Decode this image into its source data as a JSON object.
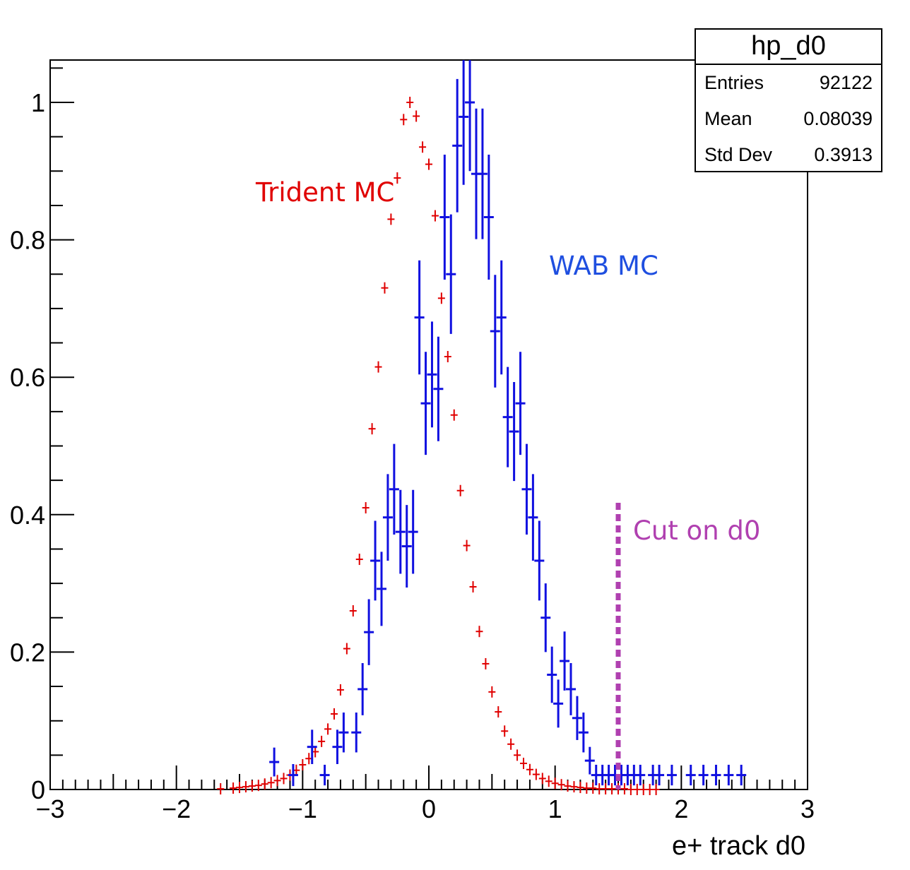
{
  "stats_box": {
    "title": "hp_d0",
    "entries_label": "Entries",
    "entries_value": "92122",
    "mean_label": "Mean",
    "mean_value": "0.08039",
    "std_label": "Std Dev",
    "std_value": "0.3913"
  },
  "annotations": {
    "trident": "Trident MC",
    "wab": "WAB MC",
    "cut": "Cut on d0"
  },
  "colors": {
    "trident": "#e00000",
    "wab": "#1010e0",
    "cut": "#b040b0",
    "axis": "#000000"
  },
  "chart_data": {
    "type": "scatter",
    "title": "",
    "xlabel": "e+ track d0",
    "ylabel": "",
    "xlim": [
      -3,
      3
    ],
    "ylim": [
      0,
      1.06
    ],
    "x_ticks": [
      "−3",
      "−2",
      "−1",
      "0",
      "1",
      "2",
      "3"
    ],
    "y_ticks": [
      "0",
      "0.2",
      "0.4",
      "0.6",
      "0.8",
      "1"
    ],
    "cut_line_x": 1.5,
    "series": [
      {
        "name": "Trident MC",
        "x": [
          -1.65,
          -1.55,
          -1.5,
          -1.45,
          -1.4,
          -1.35,
          -1.3,
          -1.25,
          -1.2,
          -1.15,
          -1.1,
          -1.05,
          -1.0,
          -0.95,
          -0.9,
          -0.85,
          -0.8,
          -0.75,
          -0.7,
          -0.65,
          -0.6,
          -0.55,
          -0.5,
          -0.45,
          -0.4,
          -0.35,
          -0.3,
          -0.25,
          -0.2,
          -0.15,
          -0.1,
          -0.05,
          0.0,
          0.05,
          0.1,
          0.15,
          0.2,
          0.25,
          0.3,
          0.35,
          0.4,
          0.45,
          0.5,
          0.55,
          0.6,
          0.65,
          0.7,
          0.75,
          0.8,
          0.85,
          0.9,
          0.95,
          1.0,
          1.05,
          1.1,
          1.15,
          1.2,
          1.25,
          1.3,
          1.35,
          1.4,
          1.45,
          1.5,
          1.55,
          1.6,
          1.65,
          1.7,
          1.75,
          1.8
        ],
        "y": [
          0.001,
          0.002,
          0.003,
          0.004,
          0.005,
          0.006,
          0.008,
          0.01,
          0.013,
          0.016,
          0.021,
          0.028,
          0.036,
          0.045,
          0.055,
          0.07,
          0.088,
          0.11,
          0.145,
          0.205,
          0.26,
          0.335,
          0.41,
          0.525,
          0.615,
          0.73,
          0.83,
          0.89,
          0.975,
          1.0,
          0.98,
          0.935,
          0.91,
          0.835,
          0.715,
          0.63,
          0.545,
          0.435,
          0.355,
          0.295,
          0.23,
          0.183,
          0.142,
          0.113,
          0.085,
          0.066,
          0.05,
          0.038,
          0.029,
          0.022,
          0.016,
          0.012,
          0.009,
          0.007,
          0.005,
          0.004,
          0.003,
          0.002,
          0.002,
          0.001,
          0.001,
          0.001,
          0.001,
          0.001,
          0.0,
          0.0,
          0.0,
          0.0,
          0.0
        ]
      },
      {
        "name": "WAB MC",
        "x": [
          -1.225,
          -1.075,
          -0.925,
          -0.825,
          -0.725,
          -0.675,
          -0.575,
          -0.525,
          -0.475,
          -0.425,
          -0.375,
          -0.325,
          -0.275,
          -0.225,
          -0.175,
          -0.125,
          -0.075,
          -0.025,
          0.025,
          0.075,
          0.125,
          0.175,
          0.225,
          0.275,
          0.325,
          0.375,
          0.425,
          0.475,
          0.525,
          0.575,
          0.625,
          0.675,
          0.725,
          0.775,
          0.825,
          0.875,
          0.925,
          0.975,
          1.025,
          1.075,
          1.125,
          1.175,
          1.225,
          1.275,
          1.325,
          1.375,
          1.425,
          1.475,
          1.525,
          1.575,
          1.625,
          1.675,
          1.775,
          1.825,
          1.925,
          2.075,
          2.175,
          2.275,
          2.375,
          2.475
        ],
        "y": [
          0.04,
          0.021,
          0.062,
          0.021,
          0.062,
          0.083,
          0.083,
          0.146,
          0.229,
          0.333,
          0.292,
          0.396,
          0.437,
          0.375,
          0.354,
          0.375,
          0.687,
          0.562,
          0.604,
          0.583,
          0.833,
          0.75,
          0.937,
          0.979,
          1.0,
          0.896,
          0.896,
          0.833,
          0.667,
          0.687,
          0.542,
          0.521,
          0.562,
          0.437,
          0.396,
          0.333,
          0.25,
          0.167,
          0.125,
          0.187,
          0.146,
          0.104,
          0.083,
          0.042,
          0.021,
          0.021,
          0.021,
          0.021,
          0.021,
          0.021,
          0.021,
          0.021,
          0.021,
          0.021,
          0.021,
          0.021,
          0.021,
          0.021,
          0.021,
          0.021
        ],
        "err": [
          0.021,
          0.016,
          0.025,
          0.015,
          0.025,
          0.029,
          0.029,
          0.038,
          0.048,
          0.058,
          0.054,
          0.063,
          0.066,
          0.061,
          0.06,
          0.061,
          0.083,
          0.075,
          0.077,
          0.076,
          0.091,
          0.087,
          0.097,
          0.099,
          0.1,
          0.095,
          0.095,
          0.091,
          0.082,
          0.083,
          0.073,
          0.072,
          0.075,
          0.066,
          0.063,
          0.058,
          0.05,
          0.041,
          0.035,
          0.043,
          0.038,
          0.032,
          0.029,
          0.02,
          0.015,
          0.015,
          0.015,
          0.015,
          0.015,
          0.015,
          0.015,
          0.015,
          0.015,
          0.015,
          0.015,
          0.015,
          0.015,
          0.015,
          0.015,
          0.015
        ]
      }
    ]
  }
}
